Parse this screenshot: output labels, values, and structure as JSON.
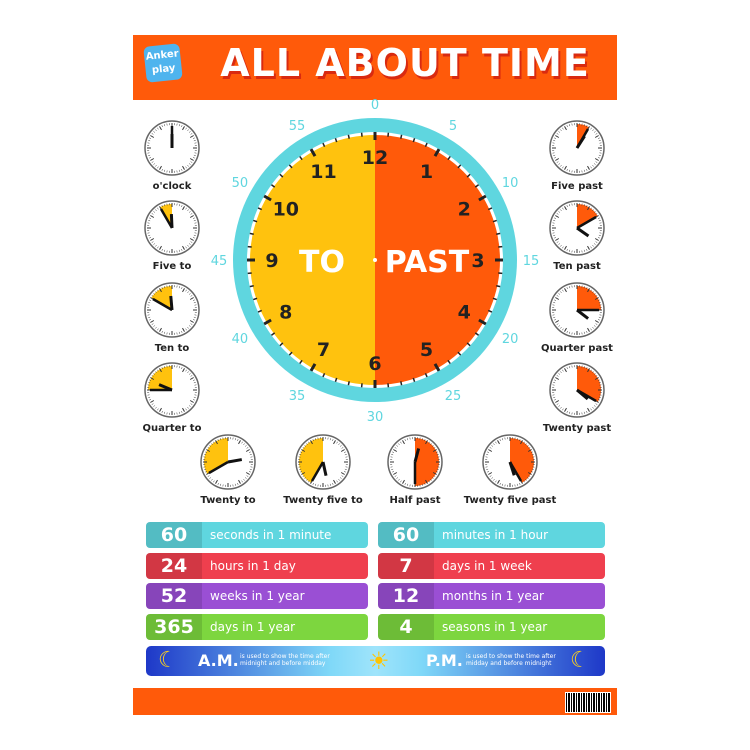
{
  "header": {
    "logo": "Anker play",
    "title": "ALL ABOUT TIME"
  },
  "colors": {
    "orange": "#ff5a0a",
    "yellow": "#ffc20e",
    "cyan": "#5fd6df",
    "red": "#ef3f4e",
    "purple": "#9a4fd4",
    "green": "#7dd63f",
    "blue": "#1e38c8"
  },
  "main_clock": {
    "hours": [
      "12",
      "1",
      "2",
      "3",
      "4",
      "5",
      "6",
      "7",
      "8",
      "9",
      "10",
      "11"
    ],
    "minutes": [
      "0",
      "5",
      "10",
      "15",
      "20",
      "25",
      "30",
      "35",
      "40",
      "45",
      "50",
      "55"
    ],
    "to_label": "TO",
    "past_label": "PAST"
  },
  "small_clocks": [
    {
      "label": "o'clock",
      "minute": 0,
      "hour": 12
    },
    {
      "label": "Five to",
      "minute": 55,
      "hour": 11
    },
    {
      "label": "Ten to",
      "minute": 50,
      "hour": 11
    },
    {
      "label": "Quarter to",
      "minute": 45,
      "hour": 9
    },
    {
      "label": "Twenty to",
      "minute": 40,
      "hour": 2
    },
    {
      "label": "Twenty five to",
      "minute": 35,
      "hour": 5
    },
    {
      "label": "Half past",
      "minute": 30,
      "hour": 12
    },
    {
      "label": "Twenty five past",
      "minute": 25,
      "hour": 5
    },
    {
      "label": "Twenty past",
      "minute": 20,
      "hour": 4
    },
    {
      "label": "Quarter past",
      "minute": 15,
      "hour": 4
    },
    {
      "label": "Ten past",
      "minute": 10,
      "hour": 4
    },
    {
      "label": "Five past",
      "minute": 5,
      "hour": 1
    }
  ],
  "facts": [
    {
      "number": "60",
      "text": "seconds in 1 minute",
      "color": "#5fd6df"
    },
    {
      "number": "60",
      "text": "minutes in 1 hour",
      "color": "#5fd6df"
    },
    {
      "number": "24",
      "text": "hours in 1 day",
      "color": "#ef3f4e"
    },
    {
      "number": "7",
      "text": "days in 1 week",
      "color": "#ef3f4e"
    },
    {
      "number": "52",
      "text": "weeks in 1 year",
      "color": "#9a4fd4"
    },
    {
      "number": "12",
      "text": "months in 1 year",
      "color": "#9a4fd4"
    },
    {
      "number": "365",
      "text": "days in 1 year",
      "color": "#7dd63f"
    },
    {
      "number": "4",
      "text": "seasons in 1 year",
      "color": "#7dd63f"
    }
  ],
  "ampm": {
    "am_label": "A.M.",
    "am_desc": "is used to show the time after midnight and before midday",
    "pm_label": "P.M.",
    "pm_desc": "is used to show the time after midday and before midnight"
  }
}
